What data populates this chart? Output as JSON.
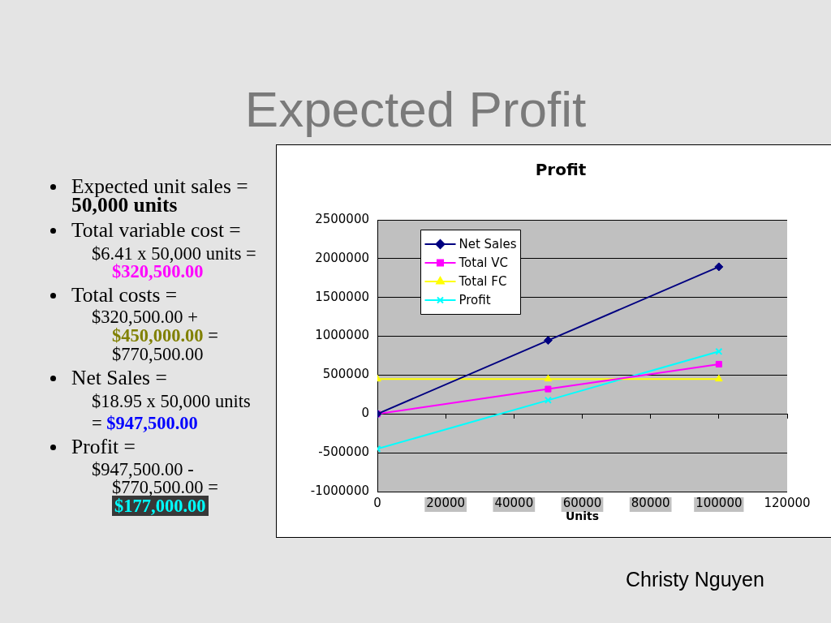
{
  "chart_data": {
    "type": "line",
    "title": "Profit",
    "xlabel": "Units",
    "x": [
      0,
      50000,
      100000
    ],
    "series": [
      {
        "name": "Net Sales",
        "color": "#000080",
        "marker": "diamond",
        "values": [
          0,
          947500,
          1895000
        ]
      },
      {
        "name": "Total VC",
        "color": "#ff00ff",
        "marker": "square",
        "values": [
          0,
          320500,
          641000
        ]
      },
      {
        "name": "Total FC",
        "color": "#ffff00",
        "marker": "triangle",
        "values": [
          450000,
          450000,
          450000
        ]
      },
      {
        "name": "Profit",
        "color": "#00ffff",
        "marker": "cross",
        "values": [
          -450000,
          177000,
          804000
        ]
      }
    ],
    "xlim": [
      0,
      120000
    ],
    "xticks": [
      0,
      20000,
      40000,
      60000,
      80000,
      100000,
      120000
    ],
    "ylim": [
      -1000000,
      2500000
    ],
    "yticks": [
      -1000000,
      -500000,
      0,
      500000,
      1000000,
      1500000,
      2000000,
      2500000
    ],
    "grid": "y",
    "legend": "top left",
    "line_style": "solid",
    "annotations": [
      "Expected Profit",
      "Expected unit sales =",
      "50,000 units",
      "Total variable cost =",
      "$6.41 x 50,000 units =",
      "$320,500.00",
      "Total costs =",
      "$320,500.00 +",
      "$450,000.00",
      "=",
      "$770,500.00",
      "Net Sales =",
      "$18.95 x 50,000 units",
      "=",
      "$947,500.00",
      "Profit =",
      "$947,500.00 -",
      "$770,500.00 =",
      "$177,000.00",
      "Christy Nguyen"
    ]
  }
}
